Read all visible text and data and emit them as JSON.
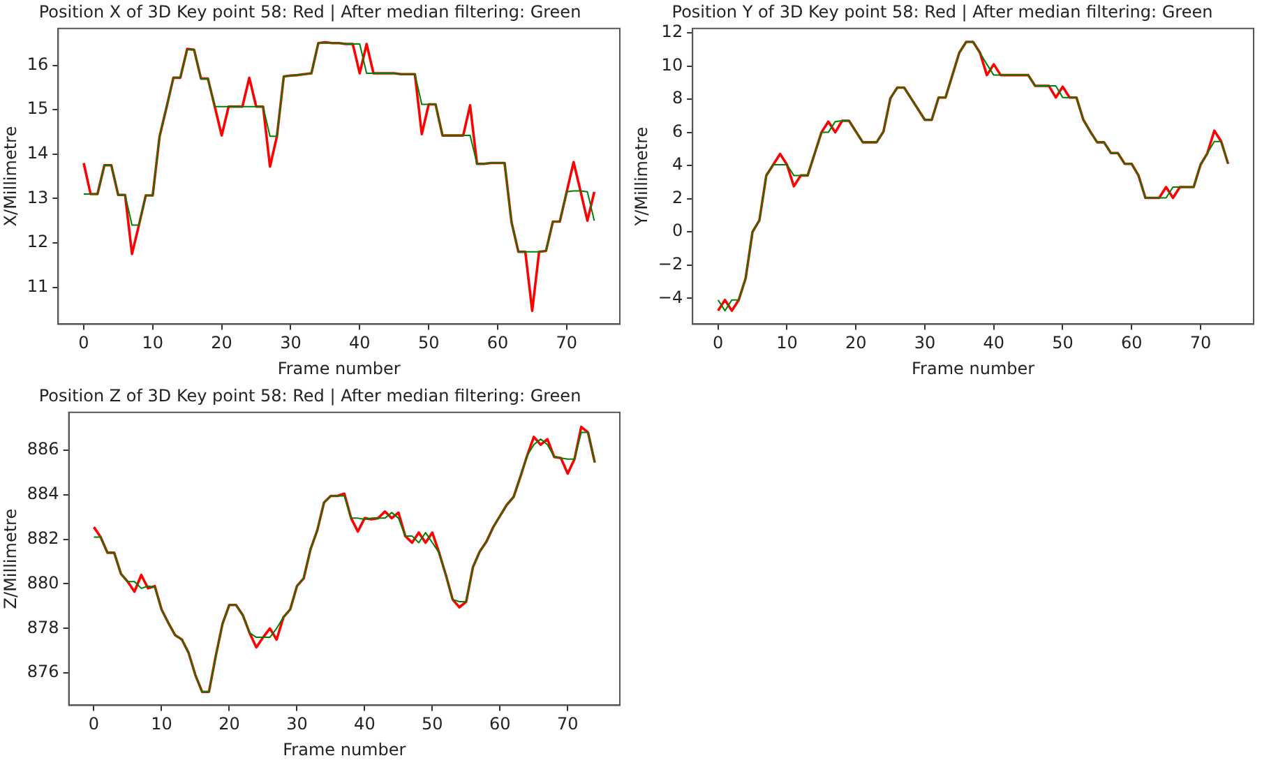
{
  "chart_data": [
    {
      "type": "line",
      "title": "Position X of 3D Key point 58: Red | After median filtering: Green",
      "xlabel": "Frame number",
      "ylabel": "X/Millimetre",
      "x": [
        0,
        1,
        2,
        3,
        4,
        5,
        6,
        7,
        8,
        9,
        10,
        11,
        12,
        13,
        14,
        15,
        16,
        17,
        18,
        19,
        20,
        21,
        22,
        23,
        24,
        25,
        26,
        27,
        28,
        29,
        30,
        31,
        32,
        33,
        34,
        35,
        36,
        37,
        38,
        39,
        40,
        41,
        42,
        43,
        44,
        45,
        46,
        47,
        48,
        49,
        50,
        51,
        52,
        53,
        54,
        55,
        56,
        57,
        58,
        59,
        60,
        61,
        62,
        63,
        64,
        65,
        66,
        67,
        68,
        69,
        70,
        71,
        72,
        73,
        74
      ],
      "series": [
        {
          "color": "#ff0000",
          "values": [
            13.8,
            13.1,
            13.1,
            13.75,
            13.75,
            13.08,
            13.08,
            11.75,
            12.4,
            13.07,
            13.07,
            14.4,
            15.05,
            15.72,
            15.72,
            16.37,
            16.35,
            15.7,
            15.7,
            15.07,
            14.42,
            15.07,
            15.07,
            15.07,
            15.72,
            15.07,
            15.07,
            13.72,
            14.4,
            15.75,
            15.77,
            15.78,
            15.8,
            15.82,
            16.5,
            16.52,
            16.5,
            16.5,
            16.48,
            16.48,
            15.82,
            16.48,
            15.82,
            15.82,
            15.82,
            15.82,
            15.8,
            15.8,
            15.8,
            14.45,
            15.12,
            15.12,
            14.42,
            14.42,
            14.42,
            14.42,
            15.1,
            13.78,
            13.78,
            13.8,
            13.8,
            13.8,
            12.47,
            11.8,
            11.8,
            10.47,
            11.8,
            11.82,
            12.48,
            12.48,
            13.15,
            13.82,
            13.17,
            12.5,
            13.15
          ]
        },
        {
          "color": "#008000",
          "values": [
            13.1,
            13.1,
            13.1,
            13.75,
            13.75,
            13.08,
            13.08,
            12.4,
            12.4,
            13.07,
            13.07,
            14.4,
            15.05,
            15.72,
            15.72,
            16.35,
            16.35,
            15.7,
            15.7,
            15.07,
            15.07,
            15.07,
            15.07,
            15.07,
            15.07,
            15.07,
            15.07,
            14.4,
            14.4,
            15.75,
            15.77,
            15.78,
            15.8,
            15.82,
            16.5,
            16.5,
            16.5,
            16.5,
            16.48,
            16.48,
            16.48,
            15.82,
            15.82,
            15.82,
            15.82,
            15.82,
            15.8,
            15.8,
            15.8,
            15.12,
            15.12,
            15.12,
            14.42,
            14.42,
            14.42,
            14.42,
            14.42,
            13.78,
            13.78,
            13.8,
            13.8,
            13.8,
            12.47,
            11.8,
            11.8,
            11.8,
            11.8,
            11.82,
            12.48,
            12.48,
            13.15,
            13.17,
            13.17,
            13.15,
            12.5
          ]
        }
      ],
      "xlim": [
        -3.7,
        77.7
      ],
      "xticks": [
        0,
        10,
        20,
        30,
        40,
        50,
        60,
        70
      ],
      "ylim": [
        10.17,
        16.83
      ],
      "yticks": [
        11,
        12,
        13,
        14,
        15,
        16
      ]
    },
    {
      "type": "line",
      "title": "Position Y of 3D Key point 58: Red | After median filtering: Green",
      "xlabel": "Frame number",
      "ylabel": "Y/Millimetre",
      "x": [
        0,
        1,
        2,
        3,
        4,
        5,
        6,
        7,
        8,
        9,
        10,
        11,
        12,
        13,
        14,
        15,
        16,
        17,
        18,
        19,
        20,
        21,
        22,
        23,
        24,
        25,
        26,
        27,
        28,
        29,
        30,
        31,
        32,
        33,
        34,
        35,
        36,
        37,
        38,
        39,
        40,
        41,
        42,
        43,
        44,
        45,
        46,
        47,
        48,
        49,
        50,
        51,
        52,
        53,
        54,
        55,
        56,
        57,
        58,
        59,
        60,
        61,
        62,
        63,
        64,
        65,
        66,
        67,
        68,
        69,
        70,
        71,
        72,
        73,
        74
      ],
      "series": [
        {
          "color": "#ff0000",
          "values": [
            -4.75,
            -4.1,
            -4.75,
            -4.1,
            -2.8,
            0.0,
            0.7,
            3.4,
            4.05,
            4.7,
            4.05,
            2.75,
            3.4,
            3.4,
            4.7,
            6.0,
            6.65,
            6.0,
            6.7,
            6.7,
            6.05,
            5.4,
            5.4,
            5.4,
            6.05,
            8.05,
            8.7,
            8.7,
            8.05,
            7.4,
            6.75,
            6.75,
            8.1,
            8.1,
            9.45,
            10.8,
            11.45,
            11.45,
            10.8,
            9.45,
            10.1,
            9.45,
            9.45,
            9.45,
            9.45,
            9.45,
            8.8,
            8.8,
            8.8,
            8.1,
            8.75,
            8.1,
            8.1,
            6.75,
            6.05,
            5.4,
            5.4,
            4.75,
            4.75,
            4.1,
            4.1,
            3.4,
            2.05,
            2.05,
            2.05,
            2.7,
            2.05,
            2.7,
            2.7,
            2.7,
            4.05,
            4.75,
            6.1,
            5.45,
            4.1
          ]
        },
        {
          "color": "#008000",
          "values": [
            -4.1,
            -4.75,
            -4.1,
            -4.1,
            -2.8,
            0.0,
            0.7,
            3.4,
            4.05,
            4.05,
            4.05,
            3.4,
            3.4,
            3.4,
            4.7,
            6.0,
            6.0,
            6.65,
            6.7,
            6.7,
            6.05,
            5.4,
            5.4,
            5.4,
            6.05,
            8.05,
            8.7,
            8.7,
            8.05,
            7.4,
            6.75,
            6.75,
            8.1,
            8.1,
            9.45,
            10.8,
            11.45,
            11.45,
            10.8,
            10.1,
            9.45,
            9.45,
            9.45,
            9.45,
            9.45,
            9.45,
            8.8,
            8.8,
            8.8,
            8.8,
            8.1,
            8.1,
            8.1,
            6.75,
            6.05,
            5.4,
            5.4,
            4.75,
            4.75,
            4.1,
            4.1,
            3.4,
            2.05,
            2.05,
            2.05,
            2.05,
            2.7,
            2.7,
            2.7,
            2.7,
            4.05,
            4.75,
            5.45,
            5.45,
            4.1
          ]
        }
      ],
      "xlim": [
        -3.7,
        77.7
      ],
      "xticks": [
        0,
        10,
        20,
        30,
        40,
        50,
        60,
        70
      ],
      "ylim": [
        -5.56,
        12.26
      ],
      "yticks": [
        {
          "value": -4,
          "label": "−4"
        },
        {
          "value": -2,
          "label": "−2"
        },
        0,
        2,
        4,
        6,
        8,
        10,
        12
      ]
    },
    {
      "type": "line",
      "title": "Position Z of 3D Key point 58: Red | After median filtering: Green",
      "xlabel": "Frame number",
      "ylabel": "Z/Millimetre",
      "x": [
        0,
        1,
        2,
        3,
        4,
        5,
        6,
        7,
        8,
        9,
        10,
        11,
        12,
        13,
        14,
        15,
        16,
        17,
        18,
        19,
        20,
        21,
        22,
        23,
        24,
        25,
        26,
        27,
        28,
        29,
        30,
        31,
        32,
        33,
        34,
        35,
        36,
        37,
        38,
        39,
        40,
        41,
        42,
        43,
        44,
        45,
        46,
        47,
        48,
        49,
        50,
        51,
        52,
        53,
        54,
        55,
        56,
        57,
        58,
        59,
        60,
        61,
        62,
        63,
        64,
        65,
        66,
        67,
        68,
        69,
        70,
        71,
        72,
        73,
        74
      ],
      "series": [
        {
          "color": "#ff0000",
          "values": [
            882.55,
            882.1,
            881.4,
            881.4,
            880.45,
            880.1,
            879.65,
            880.4,
            879.8,
            879.9,
            878.85,
            878.25,
            877.7,
            877.5,
            876.9,
            875.9,
            875.15,
            875.15,
            876.75,
            878.2,
            879.05,
            879.05,
            878.6,
            877.8,
            877.15,
            877.6,
            878.0,
            877.5,
            878.5,
            878.85,
            879.9,
            880.25,
            881.55,
            882.4,
            883.65,
            883.95,
            883.95,
            884.05,
            882.95,
            882.35,
            882.95,
            882.9,
            882.95,
            883.25,
            882.95,
            883.2,
            882.15,
            881.85,
            882.3,
            881.85,
            882.3,
            881.4,
            880.4,
            879.3,
            878.95,
            879.2,
            880.75,
            881.45,
            881.9,
            882.55,
            883.05,
            883.55,
            883.9,
            884.8,
            885.75,
            886.6,
            886.25,
            886.5,
            885.7,
            885.65,
            884.95,
            885.6,
            887.05,
            886.8,
            885.45
          ]
        },
        {
          "color": "#008000",
          "values": [
            882.1,
            882.1,
            881.4,
            881.4,
            880.45,
            880.1,
            880.1,
            879.8,
            879.9,
            879.85,
            878.85,
            878.25,
            877.7,
            877.5,
            876.9,
            875.9,
            875.15,
            875.15,
            876.75,
            878.2,
            879.05,
            879.05,
            878.6,
            877.8,
            877.6,
            877.6,
            877.6,
            878.0,
            878.5,
            878.85,
            879.9,
            880.25,
            881.55,
            882.4,
            883.65,
            883.95,
            883.95,
            883.95,
            882.95,
            882.95,
            882.9,
            882.95,
            882.95,
            882.95,
            883.2,
            882.95,
            882.15,
            882.15,
            881.85,
            882.3,
            881.85,
            881.4,
            880.4,
            879.3,
            879.2,
            879.2,
            880.75,
            881.45,
            881.9,
            882.55,
            883.05,
            883.55,
            883.9,
            884.8,
            885.75,
            886.25,
            886.5,
            886.25,
            885.7,
            885.65,
            885.6,
            885.6,
            886.8,
            886.8,
            885.45
          ]
        }
      ],
      "xlim": [
        -3.7,
        77.7
      ],
      "xticks": [
        0,
        10,
        20,
        30,
        40,
        50,
        60,
        70
      ],
      "ylim": [
        874.55,
        887.7
      ],
      "yticks": [
        876,
        878,
        880,
        882,
        884,
        886
      ]
    }
  ]
}
